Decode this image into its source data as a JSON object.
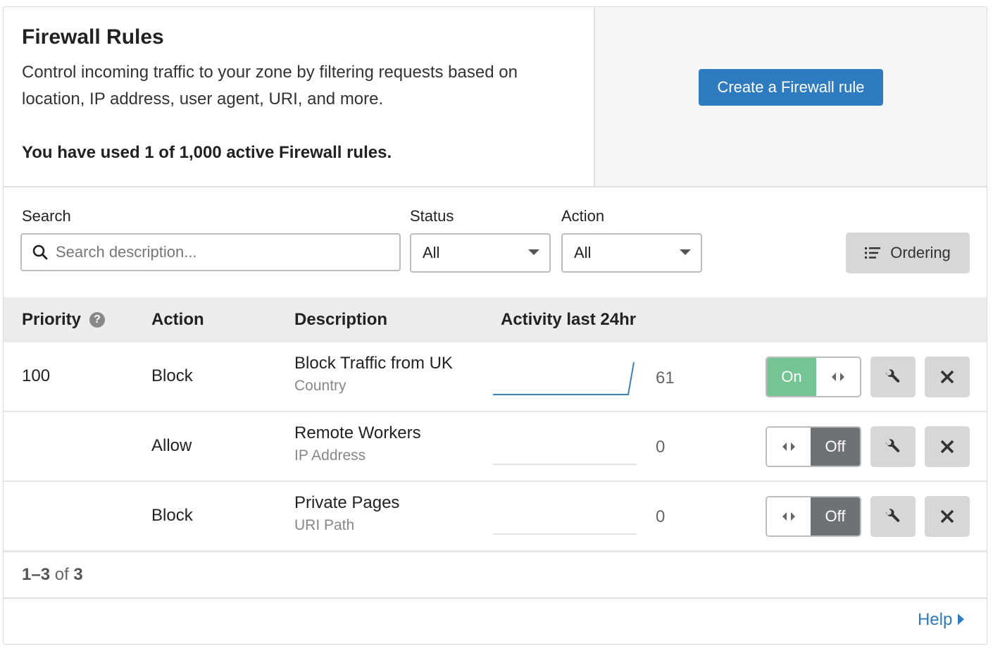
{
  "header": {
    "title": "Firewall Rules",
    "description": "Control incoming traffic to your zone by filtering requests based on location, IP address, user agent, URI, and more.",
    "usage": "You have used 1 of 1,000 active Firewall rules.",
    "create_button": "Create a Firewall rule"
  },
  "filters": {
    "search_label": "Search",
    "search_placeholder": "Search description...",
    "search_value": "",
    "status_label": "Status",
    "status_value": "All",
    "action_label": "Action",
    "action_value": "All",
    "ordering_button": "Ordering"
  },
  "table": {
    "columns": [
      "Priority",
      "Action",
      "Description",
      "Activity last 24hr"
    ],
    "rows": [
      {
        "priority": "100",
        "action": "Block",
        "description": "Block Traffic from UK",
        "field": "Country",
        "activity": "61",
        "status": "On",
        "enabled": true
      },
      {
        "priority": "",
        "action": "Allow",
        "description": "Remote Workers",
        "field": "IP Address",
        "activity": "0",
        "status": "Off",
        "enabled": false
      },
      {
        "priority": "",
        "action": "Block",
        "description": "Private Pages",
        "field": "URI Path",
        "activity": "0",
        "status": "Off",
        "enabled": false
      }
    ]
  },
  "pagination": {
    "range": "1–3",
    "of": "of",
    "total": "3"
  },
  "help": "Help",
  "colors": {
    "primary": "#2f7bbf",
    "on": "#74c494",
    "off": "#6d7277"
  }
}
